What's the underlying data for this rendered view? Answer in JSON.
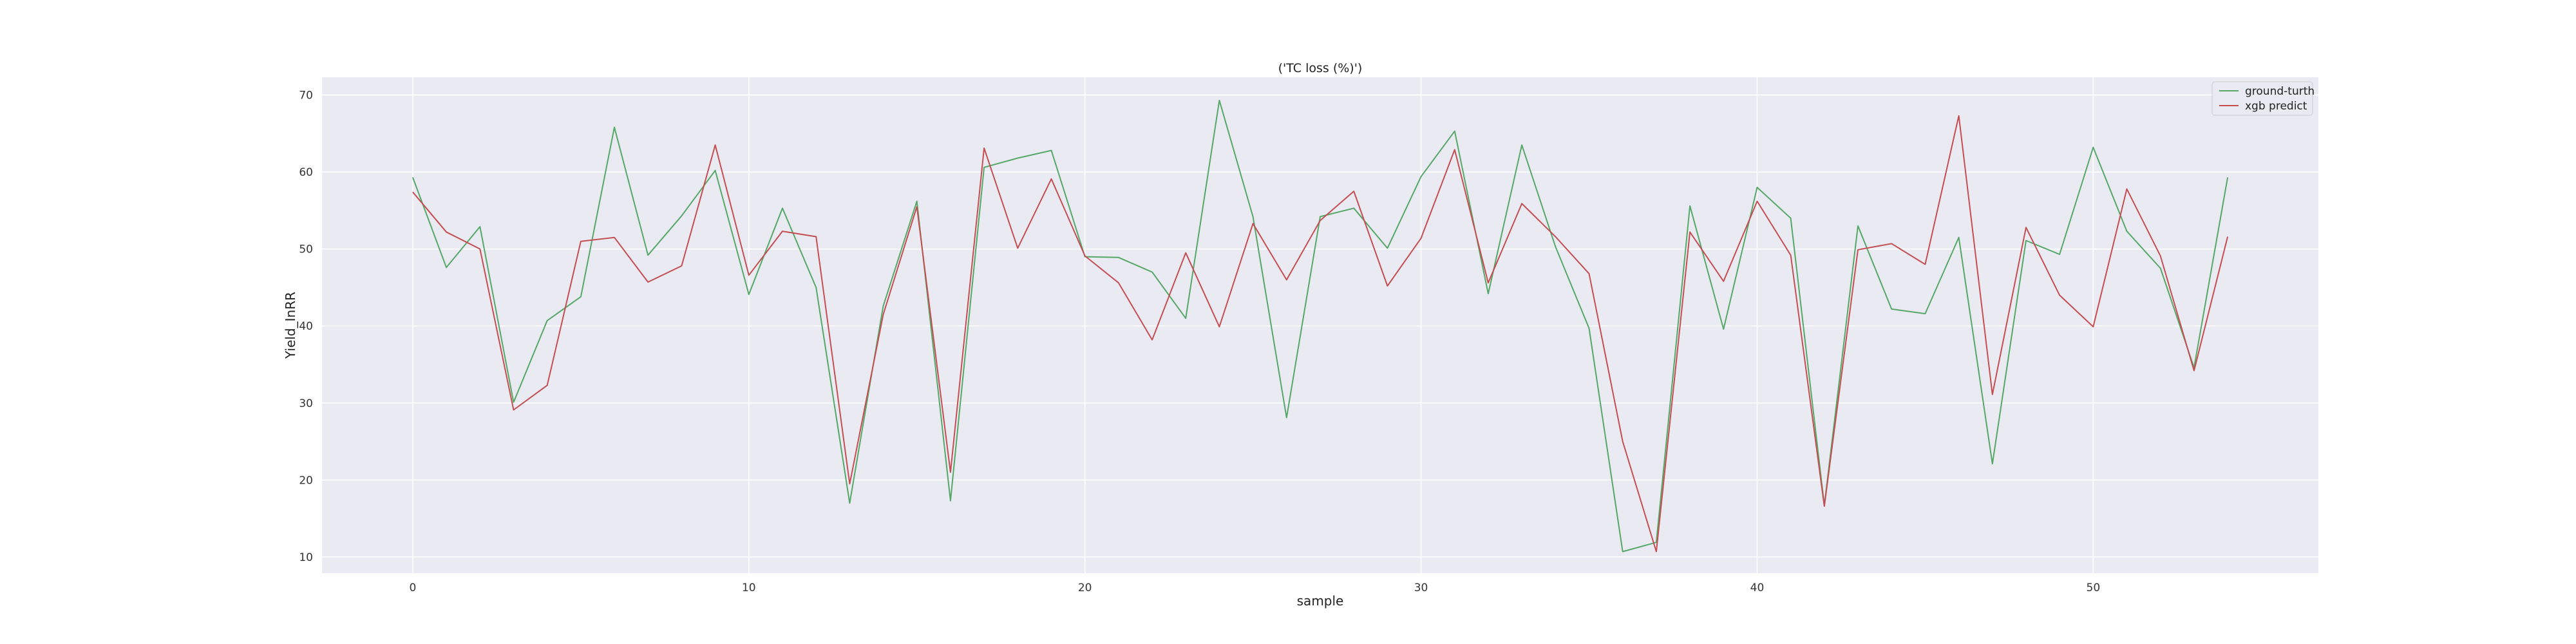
{
  "chart_data": {
    "type": "line",
    "title": "('TC loss (%)')",
    "xlabel": "sample",
    "ylabel": "Yield_InRR",
    "xlim": [
      -2.7,
      56.7
    ],
    "ylim": [
      7.9,
      72.3
    ],
    "xticks": [
      0,
      10,
      20,
      30,
      40,
      50
    ],
    "yticks": [
      10,
      20,
      30,
      40,
      50,
      60,
      70
    ],
    "grid": true,
    "legend_position": "top-right",
    "x": [
      0,
      1,
      2,
      3,
      4,
      5,
      6,
      7,
      8,
      9,
      10,
      11,
      12,
      13,
      14,
      15,
      16,
      17,
      18,
      19,
      20,
      21,
      22,
      23,
      24,
      25,
      26,
      27,
      28,
      29,
      30,
      31,
      32,
      33,
      34,
      35,
      36,
      37,
      38,
      39,
      40,
      41,
      42,
      43,
      44,
      45,
      46,
      47,
      48,
      49,
      50,
      51,
      52,
      53,
      54
    ],
    "series": [
      {
        "name": "ground-turth",
        "color": "#55a868",
        "values": [
          59.3,
          47.6,
          52.9,
          30.1,
          40.7,
          43.8,
          65.8,
          49.2,
          54.3,
          60.2,
          44.1,
          55.3,
          45.0,
          17.0,
          42.6,
          56.2,
          17.3,
          60.6,
          61.8,
          62.8,
          49.0,
          48.9,
          47.0,
          41.0,
          69.3,
          54.2,
          28.1,
          54.2,
          55.3,
          50.1,
          59.4,
          65.3,
          44.2,
          63.5,
          50.3,
          39.7,
          10.7,
          11.9,
          55.6,
          39.6,
          58.0,
          54.0,
          16.7,
          53.0,
          42.2,
          41.6,
          51.5,
          22.1,
          51.1,
          49.3,
          63.2,
          52.3,
          47.5,
          34.6,
          59.3
        ]
      },
      {
        "name": "xgb predict",
        "color": "#c44e52",
        "values": [
          57.4,
          52.2,
          50.0,
          29.1,
          32.3,
          51.0,
          51.5,
          45.7,
          47.8,
          63.5,
          46.6,
          52.3,
          51.6,
          19.5,
          41.5,
          55.5,
          21.0,
          63.1,
          50.1,
          59.1,
          49.1,
          45.6,
          38.2,
          49.5,
          39.9,
          53.3,
          46.0,
          53.7,
          57.5,
          45.2,
          51.4,
          62.9,
          45.6,
          55.9,
          51.6,
          46.8,
          25.0,
          10.7,
          52.2,
          45.8,
          56.2,
          49.2,
          16.6,
          49.9,
          50.7,
          48.0,
          67.3,
          31.1,
          52.8,
          44.0,
          39.9,
          57.8,
          49.1,
          34.2,
          51.6
        ]
      }
    ]
  },
  "colors": {
    "plot_background": "#eaeaf2",
    "grid": "#ffffff",
    "figure_background": "#ffffff"
  }
}
